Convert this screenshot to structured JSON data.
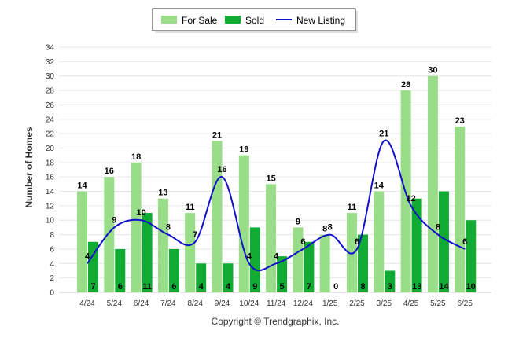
{
  "chart_data": {
    "type": "bar",
    "categories": [
      "4/24",
      "5/24",
      "6/24",
      "7/24",
      "8/24",
      "9/24",
      "10/24",
      "11/24",
      "12/24",
      "1/25",
      "2/25",
      "3/25",
      "4/25",
      "5/25",
      "6/25"
    ],
    "series": [
      {
        "name": "For Sale",
        "type": "bar",
        "color": "#99dd88",
        "values": [
          14,
          16,
          18,
          13,
          11,
          21,
          19,
          15,
          9,
          8,
          11,
          14,
          28,
          30,
          23
        ]
      },
      {
        "name": "Sold",
        "type": "bar",
        "color": "#11aa33",
        "values": [
          7,
          6,
          11,
          6,
          4,
          4,
          9,
          5,
          7,
          0,
          8,
          3,
          13,
          14,
          10
        ]
      },
      {
        "name": "New Listing",
        "type": "line",
        "color": "#1111cc",
        "values": [
          4,
          9,
          10,
          8,
          7,
          16,
          4,
          4,
          6,
          8,
          6,
          21,
          12,
          8,
          6
        ]
      }
    ],
    "ylabel": "Number of Homes",
    "ylim": [
      0,
      34
    ],
    "yticks": [
      0,
      2,
      4,
      6,
      8,
      10,
      12,
      14,
      16,
      18,
      20,
      22,
      24,
      26,
      28,
      30,
      32,
      34
    ],
    "grid": true,
    "legend_position": "top-center"
  },
  "footer": {
    "copyright": "Copyright © Trendgraphix, Inc."
  }
}
